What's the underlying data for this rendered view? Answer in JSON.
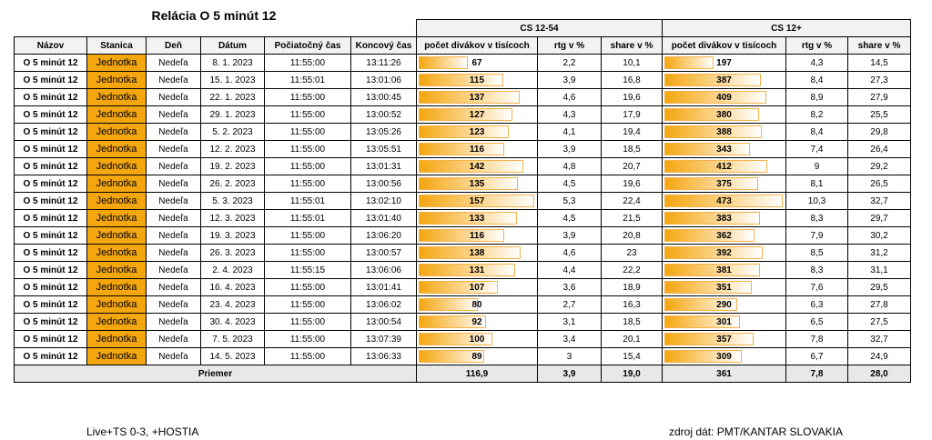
{
  "title": "Relácia O 5 minút 12",
  "groups": [
    "CS 12-54",
    "CS 12+"
  ],
  "columns": [
    "Názov",
    "Stanica",
    "Deň",
    "Dátum",
    "Počiatočný čas",
    "Koncový čas",
    "počet divákov v tisícoch",
    "rtg v %",
    "share v %",
    "počet divákov v tisícoch",
    "rtg v %",
    "share v %"
  ],
  "rows": [
    [
      "O 5 minút 12",
      "Jednotka",
      "Nedeľa",
      "8. 1. 2023",
      "11:55:00",
      "13:11:26",
      67,
      "2,2",
      "10,1",
      197,
      "4,3",
      "14,5"
    ],
    [
      "O 5 minút 12",
      "Jednotka",
      "Nedeľa",
      "15. 1. 2023",
      "11:55:01",
      "13:01:06",
      115,
      "3,9",
      "16,8",
      387,
      "8,4",
      "27,3"
    ],
    [
      "O 5 minút 12",
      "Jednotka",
      "Nedeľa",
      "22. 1. 2023",
      "11:55:00",
      "13:00:45",
      137,
      "4,6",
      "19,6",
      409,
      "8,9",
      "27,9"
    ],
    [
      "O 5 minút 12",
      "Jednotka",
      "Nedeľa",
      "29. 1. 2023",
      "11:55:00",
      "13:00:52",
      127,
      "4,3",
      "17,9",
      380,
      "8,2",
      "25,5"
    ],
    [
      "O 5 minút 12",
      "Jednotka",
      "Nedeľa",
      "5. 2. 2023",
      "11:55:00",
      "13:05:26",
      123,
      "4,1",
      "19,4",
      388,
      "8,4",
      "29,8"
    ],
    [
      "O 5 minút 12",
      "Jednotka",
      "Nedeľa",
      "12. 2. 2023",
      "11:55:00",
      "13:05:51",
      116,
      "3,9",
      "18,5",
      343,
      "7,4",
      "26,4"
    ],
    [
      "O 5 minút 12",
      "Jednotka",
      "Nedeľa",
      "19. 2. 2023",
      "11:55:00",
      "13:01:31",
      142,
      "4,8",
      "20,7",
      412,
      "9",
      "29,2"
    ],
    [
      "O 5 minút 12",
      "Jednotka",
      "Nedeľa",
      "26. 2. 2023",
      "11:55:00",
      "13:00:56",
      135,
      "4,5",
      "19,6",
      375,
      "8,1",
      "26,5"
    ],
    [
      "O 5 minút 12",
      "Jednotka",
      "Nedeľa",
      "5. 3. 2023",
      "11:55:01",
      "13:02:10",
      157,
      "5,3",
      "22,4",
      473,
      "10,3",
      "32,7"
    ],
    [
      "O 5 minút 12",
      "Jednotka",
      "Nedeľa",
      "12. 3. 2023",
      "11:55:01",
      "13:01:40",
      133,
      "4,5",
      "21,5",
      383,
      "8,3",
      "29,7"
    ],
    [
      "O 5 minút 12",
      "Jednotka",
      "Nedeľa",
      "19. 3. 2023",
      "11:55:00",
      "13:06:20",
      116,
      "3,9",
      "20,8",
      362,
      "7,9",
      "30,2"
    ],
    [
      "O 5 minút 12",
      "Jednotka",
      "Nedeľa",
      "26. 3. 2023",
      "11:55:00",
      "13:00:57",
      138,
      "4,6",
      "23",
      392,
      "8,5",
      "31,2"
    ],
    [
      "O 5 minút 12",
      "Jednotka",
      "Nedeľa",
      "2. 4. 2023",
      "11:55:15",
      "13:06:06",
      131,
      "4,4",
      "22,2",
      381,
      "8,3",
      "31,1"
    ],
    [
      "O 5 minút 12",
      "Jednotka",
      "Nedeľa",
      "16. 4. 2023",
      "11:55:00",
      "13:01:41",
      107,
      "3,6",
      "18,9",
      351,
      "7,6",
      "29,5"
    ],
    [
      "O 5 minút 12",
      "Jednotka",
      "Nedeľa",
      "23. 4. 2023",
      "11:55:00",
      "13:06:02",
      80,
      "2,7",
      "16,3",
      290,
      "6,3",
      "27,8"
    ],
    [
      "O 5 minút 12",
      "Jednotka",
      "Nedeľa",
      "30. 4. 2023",
      "11:55:00",
      "13:00:54",
      92,
      "3,1",
      "18,5",
      301,
      "6,5",
      "27,5"
    ],
    [
      "O 5 minút 12",
      "Jednotka",
      "Nedeľa",
      "7. 5. 2023",
      "11:55:00",
      "13:07:39",
      100,
      "3,4",
      "20,1",
      357,
      "7,8",
      "32,7"
    ],
    [
      "O 5 minút 12",
      "Jednotka",
      "Nedeľa",
      "14. 5. 2023",
      "11:55:00",
      "13:06:33",
      89,
      "3",
      "15,4",
      309,
      "6,7",
      "24,9"
    ]
  ],
  "average": {
    "label": "Priemer",
    "values": [
      "116,9",
      "3,9",
      "19,0",
      "361",
      "7,8",
      "28,0"
    ]
  },
  "footer": {
    "left": "Live+TS 0-3, +HOSTIA",
    "right": "zdroj dát: PMT/KANTAR SLOVAKIA"
  }
}
